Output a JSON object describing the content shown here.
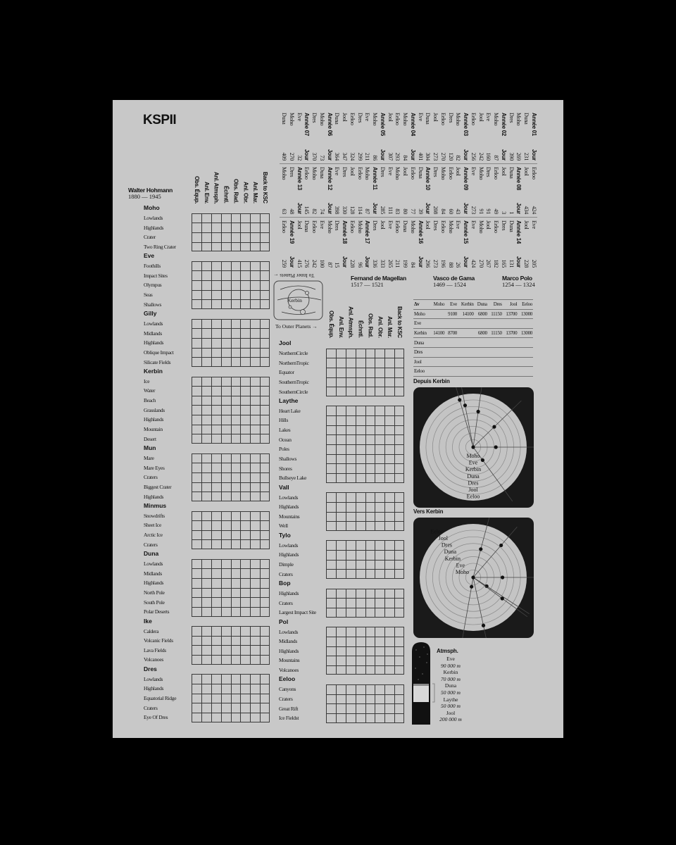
{
  "title": "KSPII",
  "explorers": [
    {
      "name": "Walter Hohmann",
      "years": "1880 — 1945"
    },
    {
      "name": "Fernand de Magellan",
      "years": "1517 — 1521"
    },
    {
      "name": "Vasco de Gama",
      "years": "1469 — 1524"
    },
    {
      "name": "Marco Polo",
      "years": "1254 — 1324"
    }
  ],
  "science_columns": [
    "Obs. Équp.",
    "Anl. Env.",
    "Anl. Atmsph.",
    "Échntl.",
    "Obs. Rad.",
    "Anl. Obr.",
    "Anl. Mar.",
    "Back to KSC"
  ],
  "inner_planets": [
    {
      "name": "Moho",
      "biomes": [
        "Lowlands",
        "Highlands",
        "Crater",
        "Two Ring Crater"
      ]
    },
    {
      "name": "Eve",
      "biomes": [
        "Foothills",
        "Impact Sites",
        "Olympus",
        "Seas",
        "Shallows"
      ]
    },
    {
      "name": "Gilly",
      "biomes": [
        "Lowlands",
        "Midlands",
        "Highlands",
        "Oblique Impact",
        "Silicate Fields"
      ]
    },
    {
      "name": "Kerbin",
      "biomes": [
        "Ice",
        "Water",
        "Beach",
        "Grasslands",
        "Highlands",
        "Mountain",
        "Desert"
      ]
    },
    {
      "name": "Mun",
      "biomes": [
        "Mare",
        "Mare Eyes",
        "Craters",
        "Biggest Crater",
        "Highlands"
      ]
    },
    {
      "name": "Minmus",
      "biomes": [
        "Snowdrifts",
        "Sheet Ice",
        "Arctic Ice",
        "Craters"
      ]
    },
    {
      "name": "Duna",
      "biomes": [
        "Lowlands",
        "Midlands",
        "Highlands",
        "North Pole",
        "South Pole",
        "Polar Deserts"
      ]
    },
    {
      "name": "Ike",
      "biomes": [
        "Caldera",
        "Volcanic Fields",
        "Lava Fields",
        "Volcanoes"
      ]
    },
    {
      "name": "Dres",
      "biomes": [
        "Lowlands",
        "Highlands",
        "Equatorial Ridge",
        "Craters",
        "Eye Of Dres"
      ]
    }
  ],
  "outer_planets": [
    {
      "name": "Jool",
      "biomes": [
        "NorthernCircle",
        "NorthernTropic",
        "Equator",
        "SouthernTropic",
        "SouthernCircle"
      ]
    },
    {
      "name": "Laythe",
      "biomes": [
        "Heart Lake",
        "Hills",
        "Lakes",
        "Ocean",
        "Poles",
        "Shallows",
        "Shores",
        "Bullseye Lake"
      ]
    },
    {
      "name": "Vall",
      "biomes": [
        "Lowlands",
        "Highlands",
        "Mountains",
        "Well"
      ]
    },
    {
      "name": "Tylo",
      "biomes": [
        "Lowlands",
        "Highlands",
        "Dimple",
        "Craters"
      ]
    },
    {
      "name": "Bop",
      "biomes": [
        "Highlands",
        "Craters",
        "Largest Impact Site"
      ]
    },
    {
      "name": "Pol",
      "biomes": [
        "Lowlands",
        "Midlands",
        "Highlands",
        "Mountains",
        "Volcanoes"
      ]
    },
    {
      "name": "Eeloo",
      "biomes": [
        "Canyons",
        "Craters",
        "Great Rift",
        "Ice Fieldst"
      ]
    }
  ],
  "orbit_diagram": {
    "center_label": "Kerbin",
    "to_inner": "To Inner Planets ←",
    "to_outer": "To Outer Planets →"
  },
  "calendar": [
    [
      [
        "Année 01",
        "Jour",
        1
      ],
      [
        "Duna",
        "231"
      ],
      [
        "Moho",
        "269"
      ],
      [
        "Dres",
        "390"
      ],
      [
        "Année 02",
        "Jour",
        1
      ],
      [
        "Moho",
        "87"
      ],
      [
        "Eve",
        "160"
      ],
      [
        "Jool",
        "242"
      ],
      [
        "Eeloo",
        "256"
      ],
      [
        "Année 03",
        "Jour",
        1
      ],
      [
        "Moho",
        "82"
      ],
      [
        "Dres",
        "120"
      ],
      [
        "Eeloo",
        "270"
      ],
      [
        "Jool",
        "273"
      ],
      [
        "Duna",
        "304"
      ],
      [
        "Eve",
        "401"
      ],
      [
        "Année 04",
        "Jour",
        1
      ],
      [
        "Moho",
        "84"
      ],
      [
        "Eeloo",
        "293"
      ],
      [
        "Jool",
        "307"
      ],
      [
        "Année 05",
        "Jour",
        1
      ],
      [
        "Moho",
        "86"
      ],
      [
        "Eve",
        "211"
      ],
      [
        "Dres",
        "299"
      ],
      [
        "Eeloo",
        "324"
      ],
      [
        "Jool",
        "347"
      ],
      [
        "Duna",
        "364"
      ],
      [
        "Année 06",
        "Jour",
        1
      ],
      [
        "Moho",
        "73"
      ],
      [
        "Dres",
        "370"
      ],
      [
        "Année 07",
        "Jour",
        1
      ],
      [
        "Eve",
        "32"
      ],
      [
        "Moho",
        "270"
      ],
      [
        "Duna",
        "409"
      ]
    ],
    [
      [
        "Eeloo",
        "424"
      ],
      [
        "Jool",
        "434"
      ],
      [
        "Année 08",
        "Jour",
        1
      ],
      [
        "Duna",
        "1"
      ],
      [
        "Jool",
        "3"
      ],
      [
        "Eeloo",
        "49"
      ],
      [
        "Dres",
        "91"
      ],
      [
        "Moho",
        "91"
      ],
      [
        "Eve",
        "273"
      ],
      [
        "Année 09",
        "Jour",
        1
      ],
      [
        "Jool",
        "43"
      ],
      [
        "Eeloo",
        "60"
      ],
      [
        "Moho",
        "84"
      ],
      [
        "Dres",
        "208"
      ],
      [
        "Année 10",
        "Jour",
        1
      ],
      [
        "Duna",
        "39"
      ],
      [
        "Eeloo",
        "77"
      ],
      [
        "Jool",
        "80"
      ],
      [
        "Moho",
        "83"
      ],
      [
        "Eve",
        "111"
      ],
      [
        "Dres",
        "285"
      ],
      [
        "Année 11",
        "Jour",
        1
      ],
      [
        "Moho",
        "87"
      ],
      [
        "Eeloo",
        "114"
      ],
      [
        "Jool",
        "128"
      ],
      [
        "Dres",
        "330"
      ],
      [
        "Eve",
        "398"
      ],
      [
        "Année 12",
        "Jour",
        1
      ],
      [
        "Duna",
        "74"
      ],
      [
        "Moho",
        "82"
      ],
      [
        "Eeloo",
        "145"
      ],
      [
        "Année 13",
        "Jour",
        1
      ],
      [
        "Dres",
        "48"
      ],
      [
        "Moho",
        "63"
      ]
    ],
    [
      [
        "Eve",
        "205"
      ],
      [
        "Jool",
        "228"
      ],
      [
        "Année 14",
        "Jour",
        1
      ],
      [
        "Duna",
        "131"
      ],
      [
        "Dres",
        "165"
      ],
      [
        "Eeloo",
        "182"
      ],
      [
        "Jool",
        "267"
      ],
      [
        "Moho",
        "270"
      ],
      [
        "Eve",
        "424"
      ],
      [
        "Année 15",
        "Jour",
        1
      ],
      [
        "Eve",
        "26"
      ],
      [
        "Moho",
        "88"
      ],
      [
        "Eeloo",
        "196"
      ],
      [
        "Dres",
        "273"
      ],
      [
        "Jool",
        "296"
      ],
      [
        "Année 16",
        "Jour",
        1
      ],
      [
        "Moho",
        "84"
      ],
      [
        "Duna",
        "199"
      ],
      [
        "Eeloo",
        "211"
      ],
      [
        "Eve",
        "265"
      ],
      [
        "Jool",
        "333"
      ],
      [
        "Dres",
        "336"
      ],
      [
        "Année 17",
        "Jour",
        1
      ],
      [
        "Moho",
        "96"
      ],
      [
        "Eeloo",
        "228"
      ],
      [
        "Année 18",
        "Jour",
        1
      ],
      [
        "Dres",
        "15"
      ],
      [
        "Moho",
        "87"
      ],
      [
        "Eve",
        "100"
      ],
      [
        "Eeloo",
        "242"
      ],
      [
        "Duna",
        "276"
      ],
      [
        "Jool",
        "415"
      ],
      [
        "Année 19",
        "Jour",
        1
      ],
      [
        "Eeloo",
        "259"
      ]
    ]
  ],
  "delta_v": {
    "header": [
      "Δv",
      "Moho",
      "Eve",
      "Kerbin",
      "Duna",
      "Dres",
      "Jool",
      "Eeloo"
    ],
    "rows": [
      [
        "Moho",
        "",
        "9100",
        "14100",
        "6800",
        "11150",
        "13700",
        "13000"
      ],
      [
        "Eve",
        "",
        "",
        "",
        "",
        "",
        "",
        ""
      ],
      [
        "Kerbin",
        "14100",
        "8700",
        "",
        "6800",
        "11150",
        "13700",
        "13000"
      ],
      [
        "Duna",
        "",
        "",
        "",
        "",
        "",
        "",
        ""
      ],
      [
        "Dres",
        "",
        "",
        "",
        "",
        "",
        "",
        ""
      ],
      [
        "Jool",
        "",
        "",
        "",
        "",
        "",
        "",
        ""
      ],
      [
        "Eeloo",
        "",
        "",
        "",
        "",
        "",
        "",
        ""
      ]
    ]
  },
  "depuis_kerbin": {
    "title": "Depuis Kerbin",
    "planets": [
      "Moho",
      "Eve",
      "Kerbin",
      "Duna",
      "Dres",
      "Jool",
      "Eeloo"
    ],
    "phase_markers": [
      {
        "angle_deg": -54,
        "ring": 2
      },
      {
        "angle_deg": 0,
        "ring": 3
      },
      {
        "angle_deg": 44,
        "ring": 4
      },
      {
        "angle_deg": 82,
        "ring": 5
      },
      {
        "angle_deg": 101,
        "ring": 6
      },
      {
        "angle_deg": 106,
        "ring": 7
      }
    ]
  },
  "vers_kerbin": {
    "title": "Vers Kerbin",
    "planets": [
      "Moho",
      "Eve",
      "Kerbin",
      "Duna",
      "Dres",
      "Jool",
      "Eeloo"
    ],
    "phase_markers": [
      {
        "angle_deg": -100,
        "ring": 1
      },
      {
        "angle_deg": -33,
        "ring": 2
      },
      {
        "angle_deg": 75,
        "ring": 4
      },
      {
        "angle_deg": 0,
        "ring": 4
      },
      {
        "angle_deg": -36,
        "ring": 5
      },
      {
        "angle_deg": 49,
        "ring": 6
      },
      {
        "angle_deg": -78,
        "ring": 7
      }
    ]
  },
  "atmosphere": {
    "title": "Atmsph.",
    "entries": [
      {
        "body": "Eve",
        "height": "90 000 m"
      },
      {
        "body": "Kerbin",
        "height": "70 000 m"
      },
      {
        "body": "Duna",
        "height": "50 000 m"
      },
      {
        "body": "Laythe",
        "height": "50 000 m"
      },
      {
        "body": "Jool",
        "height": "200 000 m"
      }
    ]
  }
}
